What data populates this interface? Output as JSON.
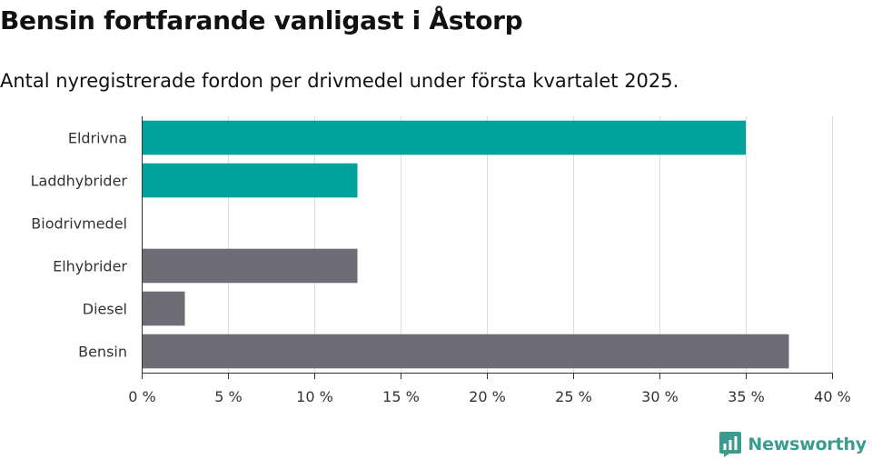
{
  "title": "Bensin fortfarande vanligast i Åstorp",
  "subtitle": "Antal nyregistrerade fordon per drivmedel under första kvartalet 2025.",
  "brand": {
    "name": "Newsworthy",
    "icon": "newsworthy-logo-icon",
    "color": "#3a9b8f"
  },
  "chart_data": {
    "type": "bar",
    "orientation": "horizontal",
    "categories": [
      "Eldrivna",
      "Laddhybrider",
      "Biodrivmedel",
      "Elhybrider",
      "Diesel",
      "Bensin"
    ],
    "values": [
      35,
      12.5,
      0,
      12.5,
      2.5,
      37.5
    ],
    "unit": "%",
    "colors": [
      "#00a39b",
      "#00a39b",
      "#00a39b",
      "#6e6d75",
      "#6e6d75",
      "#6e6d75"
    ],
    "xlim": [
      0,
      40
    ],
    "ticks": [
      0,
      5,
      10,
      15,
      20,
      25,
      30,
      35,
      40
    ],
    "tick_labels": [
      "0 %",
      "5 %",
      "10 %",
      "15 %",
      "20 %",
      "25 %",
      "30 %",
      "35 %",
      "40 %"
    ],
    "grid": true,
    "legend": "none",
    "xlabel": "",
    "ylabel": ""
  }
}
